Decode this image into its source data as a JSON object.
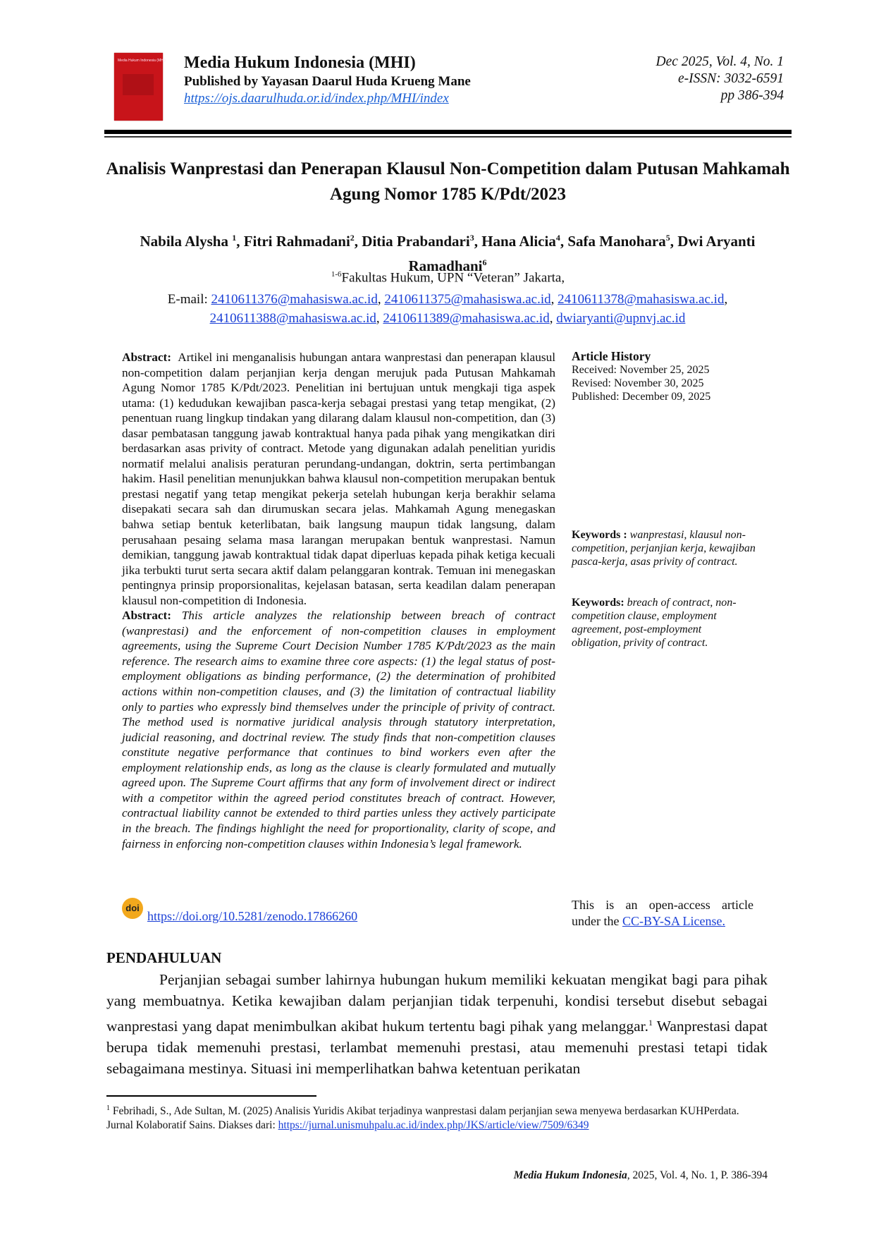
{
  "header": {
    "cover_text": "Media Hukum Indonesia (MHI)",
    "journal_title": "Media Hukum Indonesia (MHI)",
    "publisher": "Published by Yayasan Daarul Huda Krueng Mane",
    "url": "https://ojs.daarulhuda.or.id/index.php/MHI/index",
    "issue": "Dec 2025, Vol. 4, No. 1",
    "issn": "e-ISSN: 3032-6591",
    "pages": "pp 386-394"
  },
  "article": {
    "title": "Analisis Wanprestasi dan Penerapan Klausul Non-Competition dalam Putusan Mahkamah Agung Nomor 1785 K/Pdt/2023",
    "authors": [
      {
        "name": "Nabila Alysha ",
        "sup": "1"
      },
      {
        "name": "Fitri Rahmadani",
        "sup": "2"
      },
      {
        "name": "Ditia Prabandari",
        "sup": "3"
      },
      {
        "name": "Hana Alicia",
        "sup": "4"
      },
      {
        "name": "Safa Manohara",
        "sup": "5"
      },
      {
        "name": "Dwi Aryanti Ramadhani",
        "sup": "6"
      }
    ],
    "affiliation_sup": "1-6",
    "affiliation": "Fakultas Hukum, UPN “Veteran” Jakarta,",
    "email_label": "E-mail: ",
    "emails": [
      "2410611376@mahasiswa.ac.id",
      "2410611375@mahasiswa.ac.id",
      "2410611378@mahasiswa.ac.id",
      "2410611388@mahasiswa.ac.id",
      "2410611389@mahasiswa.ac.id",
      "dwiaryanti@upnvj.ac.id"
    ]
  },
  "abstract": {
    "label": "Abstract:",
    "id_text": "Artikel ini menganalisis hubungan antara wanprestasi dan penerapan klausul non-competition dalam perjanjian kerja dengan merujuk pada Putusan Mahkamah Agung Nomor 1785 K/Pdt/2023. Penelitian ini bertujuan untuk mengkaji tiga aspek utama: (1) kedudukan kewajiban pasca-kerja sebagai prestasi yang tetap mengikat, (2) penentuan ruang lingkup tindakan yang dilarang dalam klausul non-competition, dan (3) dasar pembatasan tanggung jawab kontraktual hanya pada pihak yang mengikatkan diri berdasarkan asas privity of contract. Metode yang digunakan adalah penelitian yuridis normatif melalui analisis peraturan perundang-undangan, doktrin, serta pertimbangan hakim. Hasil penelitian menunjukkan bahwa klausul non-competition merupakan bentuk prestasi negatif yang tetap mengikat pekerja setelah hubungan kerja berakhir selama disepakati secara sah dan dirumuskan secara jelas. Mahkamah Agung menegaskan bahwa setiap bentuk keterlibatan, baik langsung maupun tidak langsung, dalam perusahaan pesaing selama masa larangan merupakan bentuk wanprestasi. Namun demikian, tanggung jawab kontraktual tidak dapat diperluas kepada pihak ketiga kecuali jika terbukti turut serta secara aktif dalam pelanggaran kontrak. Temuan ini menegaskan pentingnya prinsip proporsionalitas, kejelasan batasan, serta keadilan dalam penerapan klausul non-competition di Indonesia.",
    "en_label": "Abstract:",
    "en_text": "This article analyzes the relationship between breach of contract (wanprestasi) and the enforcement of non-competition clauses in employment agreements, using the Supreme Court Decision Number 1785 K/Pdt/2023 as the main reference. The research aims to examine three core aspects: (1) the legal status of post-employment obligations as binding performance, (2) the determination of prohibited actions within non-competition clauses, and (3) the limitation of contractual liability only to parties who expressly bind themselves under the principle of privity of contract. The method used is normative juridical analysis through statutory interpretation, judicial reasoning, and doctrinal review. The study finds that non-competition clauses constitute negative performance that continues to bind workers even after the employment relationship ends, as long as the clause is clearly formulated and mutually agreed upon. The Supreme Court affirms that any form of involvement direct or indirect with a competitor within the agreed period constitutes breach of contract. However, contractual liability cannot be extended to third parties unless they actively participate in the breach. The findings highlight the need for proportionality, clarity of scope, and fairness in enforcing non-competition clauses within Indonesia’s legal framework."
  },
  "sidebar": {
    "history_title": "Article History",
    "received": "Received: November 25, 2025",
    "revised": "Revised: November 30, 2025",
    "published": "Published: December 09, 2025",
    "keywords_id_label": "Keywords : ",
    "keywords_id": "wanprestasi, klausul non-competition, perjanjian kerja, kewajiban pasca-kerja, asas privity of contract.",
    "keywords_en_label": "Keywords: ",
    "keywords_en": "breach of contract, non-competition clause, employment agreement, post-employment obligation, privity of contract."
  },
  "doi": {
    "icon_text": "doi",
    "url": "https://doi.org/10.5281/zenodo.17866260"
  },
  "license": {
    "line1": "This is an open-access article",
    "prefix": "under the ",
    "link": "CC-BY-SA License."
  },
  "intro": {
    "heading": "PENDAHULUAN",
    "text1": "Perjanjian sebagai sumber lahirnya hubungan hukum memiliki kekuatan mengikat bagi para pihak yang membuatnya. Ketika kewajiban dalam perjanjian tidak terpenuhi, kondisi tersebut disebut sebagai wanprestasi yang dapat menimbulkan akibat hukum tertentu bagi pihak yang melanggar.",
    "fn_ref": "1",
    "text2": " Wanprestasi dapat berupa tidak memenuhi prestasi, terlambat memenuhi prestasi, atau memenuhi prestasi tetapi tidak sebagaimana mestinya. Situasi ini memperlihatkan bahwa ketentuan perikatan"
  },
  "footnote": {
    "num": "1",
    "text": " Febrihadi, S., Ade Sultan, M. (2025) Analisis Yuridis Akibat terjadinya wanprestasi dalam perjanjian sewa menyewa berdasarkan KUHPerdata. Jurnal Kolaboratif Sains. Diakses dari: ",
    "url": "https://jurnal.unismuhpalu.ac.id/index.php/JKS/article/view/7509/6349"
  },
  "footer": {
    "journal": "Media Hukum Indonesia",
    "rest": ", 2025, Vol.  4, No. 1, P. 386-394"
  }
}
